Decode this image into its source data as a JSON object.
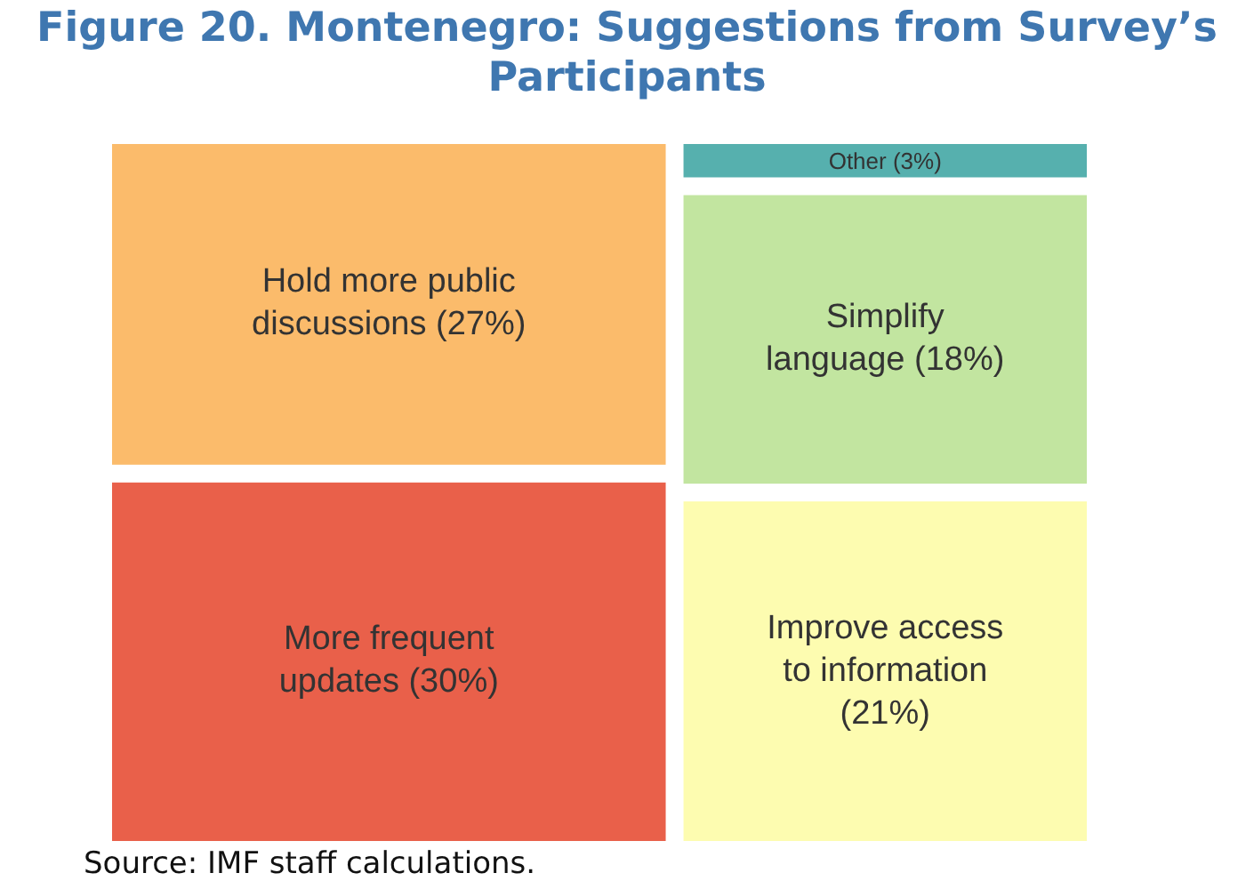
{
  "chart_data": {
    "type": "other",
    "title": "Figure 20. Montenegro: Suggestions from Survey’s Participants",
    "categories": [
      "Hold more public discussions",
      "More frequent updates",
      "Other",
      "Simplify language",
      "Improve access to information"
    ],
    "value_labels": [
      "(27%)",
      "(30%)",
      "(3%)",
      "(18%)",
      "(21%)"
    ],
    "values": [
      27,
      30,
      3,
      18,
      21
    ],
    "colors": [
      "#fbbb6b",
      "#e9604a",
      "#56b0ae",
      "#c2e5a0",
      "#fdfcb0"
    ],
    "annotations": [
      "Source: IMF staff calculations."
    ]
  }
}
